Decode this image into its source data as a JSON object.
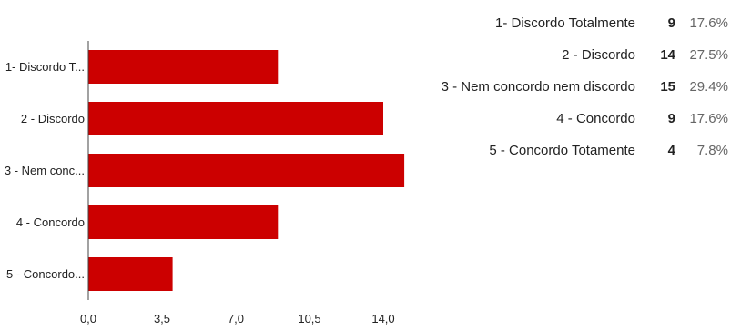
{
  "colors": {
    "bar": "#cc0000",
    "axis": "#444444"
  },
  "chart_data": {
    "type": "bar",
    "orientation": "horizontal",
    "categories": [
      "1- Discordo T...",
      "2 - Discordo",
      "3 - Nem conc...",
      "4 - Concordo",
      "5 - Concordo..."
    ],
    "values": [
      9,
      14,
      15,
      9,
      4
    ],
    "xlim": [
      0,
      17.5
    ],
    "ticks": [
      "0,0",
      "3,5",
      "7,0",
      "10,5",
      "14,0"
    ],
    "tick_values": [
      0,
      3.5,
      7,
      10.5,
      14
    ],
    "grid": false,
    "title": "",
    "xlabel": "",
    "ylabel": ""
  },
  "summary": [
    {
      "label": "1- Discordo Totalmente",
      "count": "9",
      "percent": "17.6%"
    },
    {
      "label": "2 - Discordo",
      "count": "14",
      "percent": "27.5%"
    },
    {
      "label": "3 - Nem concordo nem discordo",
      "count": "15",
      "percent": "29.4%"
    },
    {
      "label": "4 - Concordo",
      "count": "9",
      "percent": "17.6%"
    },
    {
      "label": "5 - Concordo Totamente",
      "count": "4",
      "percent": "7.8%"
    }
  ]
}
